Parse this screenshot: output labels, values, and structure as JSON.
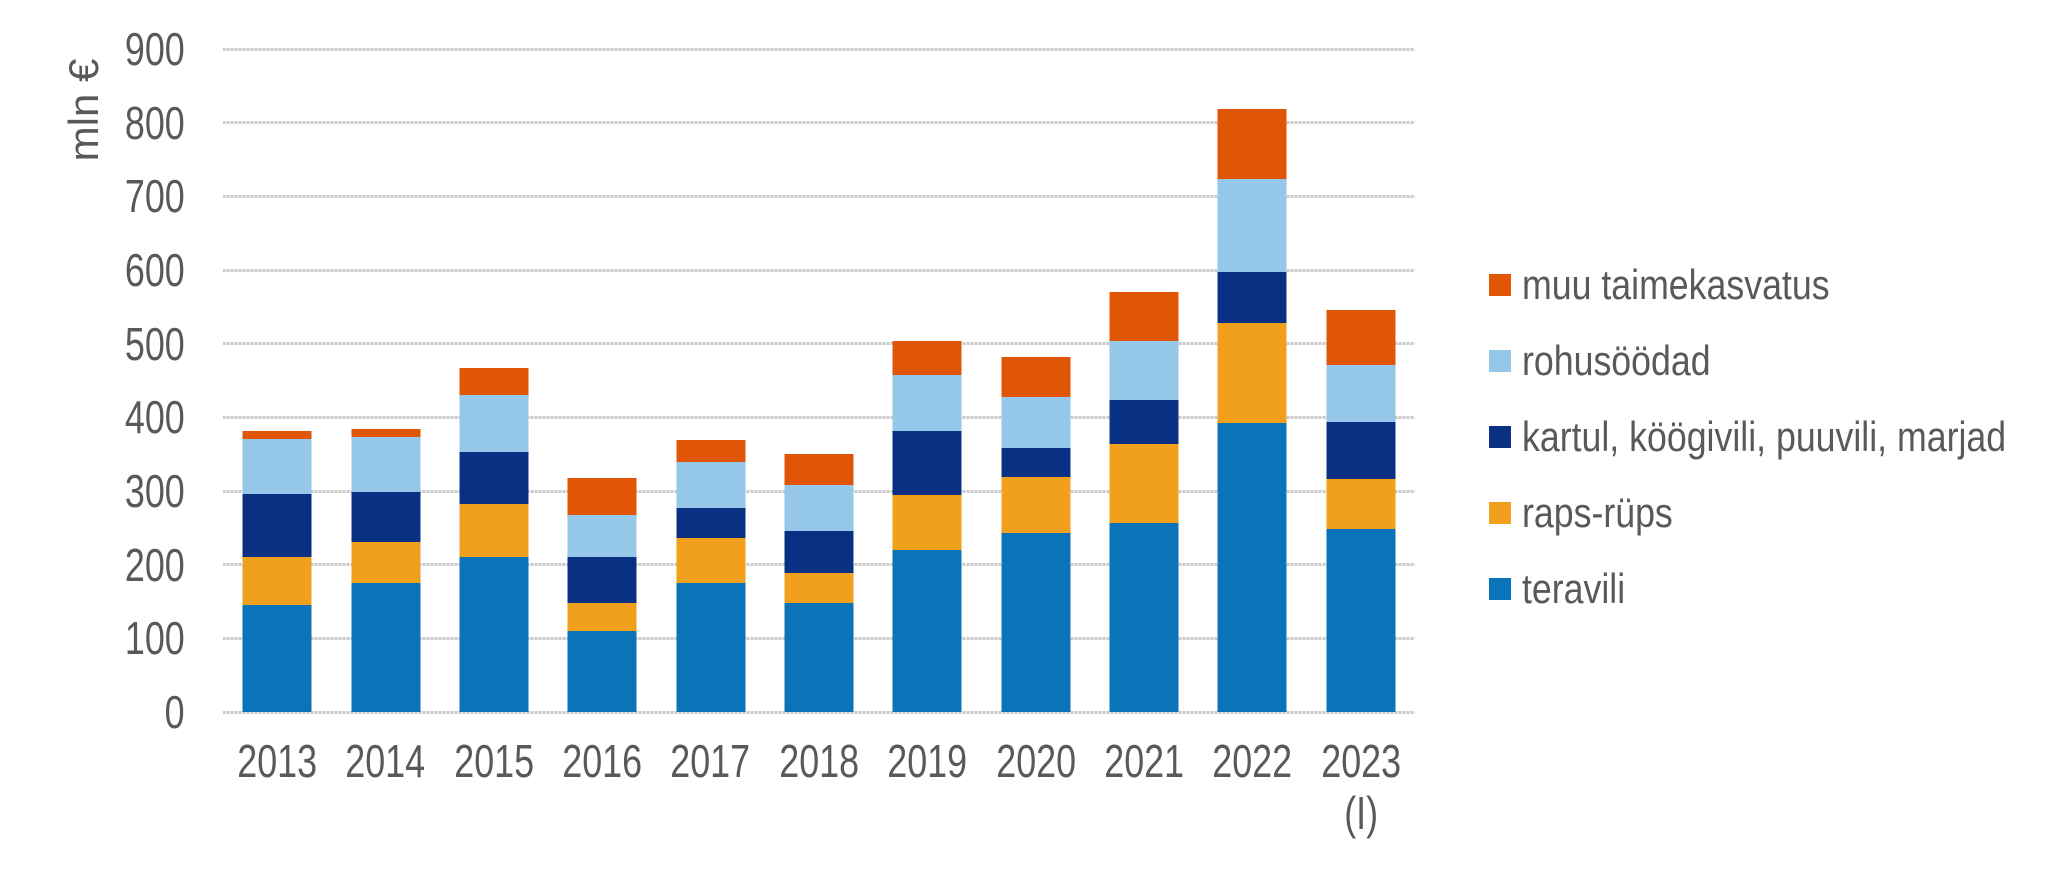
{
  "colors": {
    "grid": "#c9c9c9",
    "text": "#595959",
    "background": "#ffffff"
  },
  "chart_data": {
    "type": "bar",
    "stacked": true,
    "ylabel": "mln €",
    "ylim": [
      0,
      900
    ],
    "ytick_step": 100,
    "grid": true,
    "legend_position": "right",
    "categories": [
      "2013",
      "2014",
      "2015",
      "2016",
      "2017",
      "2018",
      "2019",
      "2020",
      "2021",
      "2022",
      "2023"
    ],
    "category_notes": {
      "2023": "(I)"
    },
    "series": [
      {
        "name": "teravili",
        "color": "#0b73b8",
        "values": [
          145,
          175,
          211,
          110,
          175,
          148,
          220,
          243,
          256,
          393,
          249
        ]
      },
      {
        "name": "raps-rüps",
        "color": "#f1a01e",
        "values": [
          65,
          56,
          72,
          38,
          61,
          41,
          75,
          76,
          108,
          135,
          67
        ]
      },
      {
        "name": "kartul, köögivili, puuvili, marjad",
        "color": "#0a3084",
        "values": [
          86,
          68,
          70,
          63,
          41,
          57,
          87,
          39,
          60,
          69,
          77
        ]
      },
      {
        "name": "rohusöödad",
        "color": "#95c7e9",
        "values": [
          74,
          74,
          77,
          57,
          63,
          62,
          75,
          70,
          79,
          127,
          78
        ]
      },
      {
        "name": "muu taimekasvatus",
        "color": "#e05606",
        "values": [
          11,
          11,
          37,
          49,
          29,
          42,
          46,
          54,
          67,
          94,
          75
        ]
      }
    ],
    "legend_top_to_bottom": [
      "muu taimekasvatus",
      "rohusöödad",
      "kartul, köögivili, puuvili, marjad",
      "raps-rüps",
      "teravili"
    ]
  }
}
